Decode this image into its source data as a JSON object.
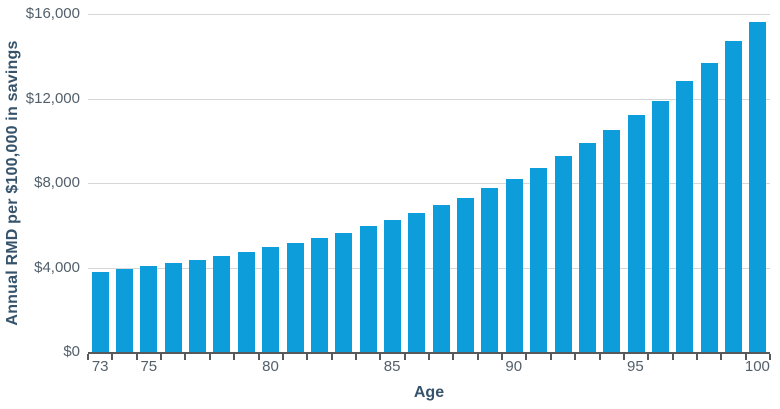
{
  "chart_data": {
    "type": "bar",
    "title": "",
    "xlabel": "Age",
    "ylabel": "Annual RMD per $100,000 in savings",
    "categories": [
      "73",
      "74",
      "75",
      "76",
      "77",
      "78",
      "79",
      "80",
      "81",
      "82",
      "83",
      "84",
      "85",
      "86",
      "87",
      "88",
      "89",
      "90",
      "91",
      "92",
      "93",
      "94",
      "95",
      "96",
      "97",
      "98",
      "99",
      "100"
    ],
    "values": [
      3774,
      3922,
      4065,
      4219,
      4367,
      4545,
      4739,
      4950,
      5155,
      5405,
      5650,
      5952,
      6250,
      6579,
      6944,
      7299,
      7752,
      8197,
      8696,
      9259,
      9901,
      10526,
      11236,
      11905,
      12821,
      13699,
      14706,
      15625
    ],
    "ylim": [
      0,
      16000
    ],
    "y_ticks": [
      0,
      4000,
      8000,
      12000,
      16000
    ],
    "y_tick_labels": [
      "$0",
      "$4,000",
      "$8,000",
      "$12,000",
      "$16,000"
    ],
    "x_tick_labels": [
      "73",
      "75",
      "80",
      "85",
      "90",
      "95",
      "100"
    ],
    "grid": "horizontal",
    "legend_position": "none",
    "colors": {
      "bar": "#0D9DDA",
      "gridline": "#D6D7D8",
      "axis_line": "#58595B",
      "tick_label": "#53606B",
      "axis_title": "#35536B"
    }
  }
}
